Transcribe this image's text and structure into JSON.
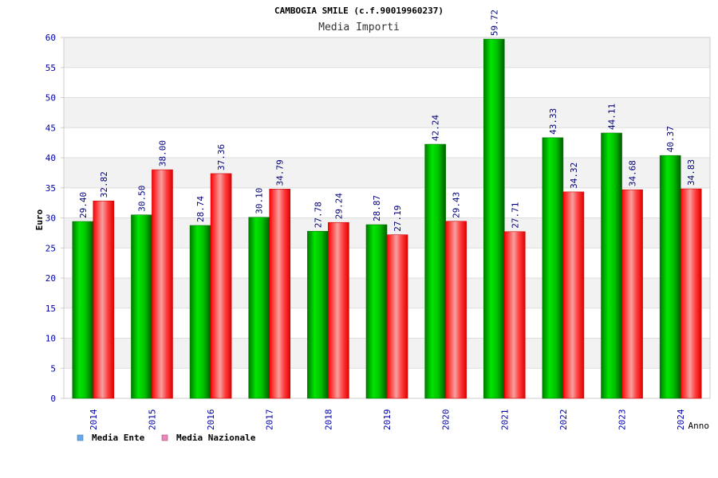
{
  "chart_data": {
    "type": "bar",
    "title": "CAMBOGIA SMILE (c.f.90019960237)",
    "subtitle": "Media Importi",
    "xlabel": "Anno",
    "ylabel": "Euro",
    "ylim": [
      0,
      60
    ],
    "yticks": [
      "0",
      "5",
      "10",
      "15",
      "20",
      "25",
      "30",
      "35",
      "40",
      "45",
      "50",
      "55",
      "60"
    ],
    "grid": true,
    "legend_position": "bottom-left",
    "categories": [
      "2014",
      "2015",
      "2016",
      "2017",
      "2018",
      "2019",
      "2020",
      "2021",
      "2022",
      "2023",
      "2024"
    ],
    "series": [
      {
        "name": "Media Ente",
        "values": [
          29.4,
          30.5,
          28.74,
          30.1,
          27.78,
          28.87,
          42.24,
          59.72,
          43.33,
          44.11,
          40.37
        ],
        "labels": [
          "29.40",
          "30.50",
          "28.74",
          "30.10",
          "27.78",
          "28.87",
          "42.24",
          "59.72",
          "43.33",
          "44.11",
          "40.37"
        ],
        "color": "#00cc00",
        "legend_color": "#66aaee"
      },
      {
        "name": "Media Nazionale",
        "values": [
          32.82,
          38.0,
          37.36,
          34.79,
          29.24,
          27.19,
          29.43,
          27.71,
          34.32,
          34.68,
          34.83
        ],
        "labels": [
          "32.82",
          "38.00",
          "37.36",
          "34.79",
          "29.24",
          "27.19",
          "29.43",
          "27.71",
          "34.32",
          "34.68",
          "34.83"
        ],
        "color": "#ff2222",
        "legend_color": "#ee88bb"
      }
    ]
  }
}
